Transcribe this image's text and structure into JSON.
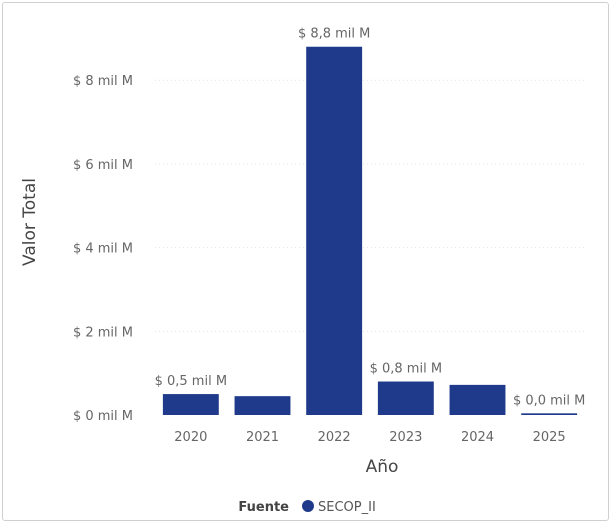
{
  "chart_data": {
    "type": "bar",
    "title": "",
    "xlabel": "Año",
    "ylabel": "Valor Total",
    "categories": [
      "2020",
      "2021",
      "2022",
      "2023",
      "2024",
      "2025"
    ],
    "series": [
      {
        "name": "SECOP_II",
        "values": [
          0.5,
          0.45,
          8.8,
          0.8,
          0.72,
          0.04
        ],
        "data_labels": [
          "$ 0,5 mil M",
          "",
          "$ 8,8 mil M",
          "$ 0,8 mil M",
          "",
          "$ 0,0 mil M"
        ],
        "color": "#1f3a8a"
      }
    ],
    "ylim": [
      0,
      9.2
    ],
    "yticks": [
      0,
      2,
      4,
      6,
      8
    ],
    "ytick_labels": [
      "$ 0 mil M",
      "$ 2 mil M",
      "$ 4 mil M",
      "$ 6 mil M",
      "$ 8 mil M"
    ],
    "grid": true,
    "legend": {
      "title": "Fuente",
      "position": "bottom"
    }
  }
}
